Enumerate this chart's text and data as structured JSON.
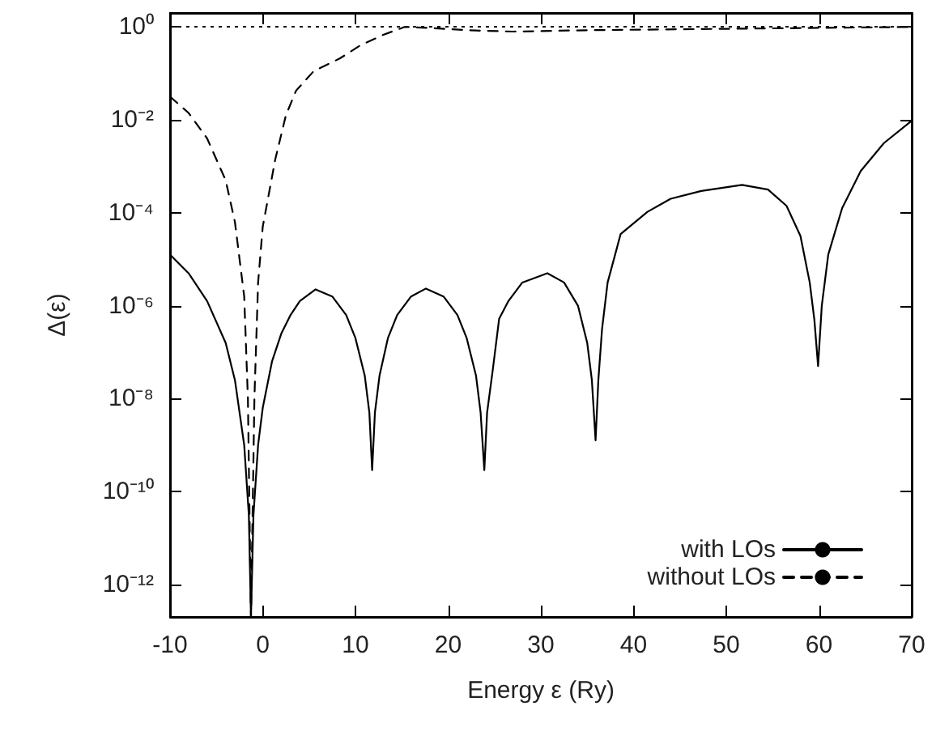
{
  "chart_data": {
    "type": "line",
    "xlabel": "Energy ε (Ry)",
    "ylabel": "Δ(ε)",
    "log": "y",
    "xlim": [
      -10,
      70
    ],
    "xticks": [
      -10,
      0,
      10,
      20,
      30,
      40,
      50,
      60,
      70
    ],
    "ylim": [
      2e-13,
      2
    ],
    "yticks": [
      {
        "value": 1,
        "label": "10⁰"
      },
      {
        "value": 0.01,
        "label": "10⁻²"
      },
      {
        "value": 0.0001,
        "label": "10⁻⁴"
      },
      {
        "value": 1e-06,
        "label": "10⁻⁶"
      },
      {
        "value": 1e-08,
        "label": "10⁻⁸"
      },
      {
        "value": 1e-10,
        "label": "10⁻¹⁰"
      },
      {
        "value": 1e-12,
        "label": "10⁻¹²"
      }
    ],
    "grid": false,
    "legend": "bottom right",
    "marker": "none",
    "ref_lines": [
      {
        "axis": "y",
        "value": 1,
        "color": "#000000",
        "line_style": "dotted"
      }
    ],
    "series": [
      {
        "name": "with LOs",
        "color": "#000000",
        "line_style": "solid",
        "x": [
          -10,
          -8,
          -6,
          -4,
          -3,
          -2,
          -1.5,
          -1.27,
          -1.0,
          -0.5,
          0,
          1,
          2,
          3,
          4,
          5.7,
          7.5,
          9,
          10,
          11,
          11.5,
          11.8,
          12.1,
          12.6,
          13.5,
          14.5,
          16,
          17.6,
          19.5,
          21,
          22,
          23,
          23.5,
          23.9,
          24.2,
          24.8,
          25.5,
          26.5,
          28,
          30.7,
          32.5,
          34,
          35,
          35.5,
          35.9,
          36.2,
          36.6,
          37.2,
          38.6,
          41.5,
          44,
          47.3,
          51.7,
          54.5,
          56.5,
          58,
          59,
          59.5,
          59.9,
          60.3,
          61,
          62.5,
          64.5,
          67,
          70
        ],
        "values": [
          1.26e-05,
          5.01e-06,
          1.26e-06,
          1.58e-07,
          2.51e-08,
          1e-09,
          3.16e-11,
          2e-13,
          3.16e-11,
          1e-09,
          6.31e-09,
          6.31e-08,
          2.51e-07,
          6.31e-07,
          1.26e-06,
          2.24e-06,
          1.58e-06,
          6.31e-07,
          2e-07,
          3.16e-08,
          5.01e-09,
          2.9e-10,
          5.01e-09,
          3.16e-08,
          2e-07,
          6.31e-07,
          1.58e-06,
          2.34e-06,
          1.58e-06,
          6.31e-07,
          2e-07,
          3.16e-08,
          5.01e-09,
          2.9e-10,
          5.01e-09,
          3.98e-08,
          5.25e-07,
          1.26e-06,
          3.16e-06,
          5.01e-06,
          3.16e-06,
          1e-06,
          1.58e-07,
          2.51e-08,
          1.26e-09,
          2.51e-08,
          3.16e-07,
          3.16e-06,
          3.47e-05,
          0.000105,
          0.0002,
          0.000295,
          0.000398,
          0.000316,
          0.000141,
          3.16e-05,
          3.16e-06,
          5.01e-07,
          5.01e-08,
          1e-06,
          1.26e-05,
          0.000126,
          0.000794,
          0.00316,
          0.00955
        ]
      },
      {
        "name": "without LOs",
        "color": "#000000",
        "line_style": "dashed",
        "x": [
          -10,
          -8,
          -6,
          -4,
          -3,
          -2,
          -1.6,
          -1.27,
          -0.9,
          -0.5,
          0,
          1.35,
          2.5,
          3.6,
          5.5,
          8.3,
          10.5,
          13,
          15.3,
          18,
          22,
          27,
          35,
          45,
          55,
          70
        ],
        "values": [
          0.0316,
          0.0141,
          0.00398,
          0.000501,
          6.31e-05,
          1.58e-06,
          1e-08,
          2e-13,
          1e-08,
          3.16e-06,
          5.01e-05,
          0.00141,
          0.0126,
          0.0427,
          0.112,
          0.209,
          0.398,
          0.676,
          1,
          0.955,
          0.851,
          0.794,
          0.851,
          0.891,
          0.933,
          1
        ]
      }
    ]
  }
}
